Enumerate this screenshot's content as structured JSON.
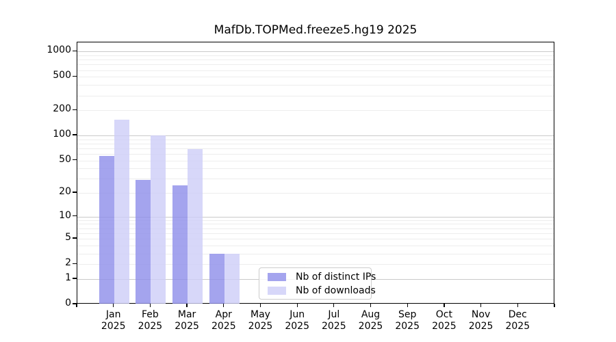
{
  "title": "MafDb.TOPMed.freeze5.hg19 2025",
  "chart_data": {
    "type": "bar",
    "title": "MafDb.TOPMed.freeze5.hg19 2025",
    "categories": [
      "Jan",
      "Feb",
      "Mar",
      "Apr",
      "May",
      "Jun",
      "Jul",
      "Aug",
      "Sep",
      "Oct",
      "Nov",
      "Dec"
    ],
    "year_label": "2025",
    "series": [
      {
        "name": "Nb of distinct IPs",
        "color": "rgba(141,141,234,0.8)",
        "values": [
          57,
          29,
          25,
          3,
          0,
          0,
          0,
          0,
          0,
          0,
          0,
          0
        ]
      },
      {
        "name": "Nb of downloads",
        "color": "rgba(205,205,247,0.8)",
        "values": [
          155,
          100,
          68,
          3,
          0,
          0,
          0,
          0,
          0,
          0,
          0,
          0
        ]
      }
    ],
    "xlabel": "",
    "ylabel": "",
    "y_axis": {
      "scale": "log1p",
      "ticks": [
        0,
        1,
        2,
        5,
        10,
        20,
        50,
        100,
        200,
        500,
        1000
      ],
      "range": [
        0,
        1000
      ]
    },
    "grid": {
      "on": true,
      "major_values": [
        1,
        10,
        100,
        1000
      ],
      "minor_multiples": [
        2,
        3,
        4,
        5,
        6,
        7,
        8,
        9
      ],
      "major_color": "#c9c9c9",
      "minor_color": "#ededed"
    },
    "legend": {
      "position": "lower center",
      "entries": [
        "Nb of distinct IPs",
        "Nb of downloads"
      ]
    }
  },
  "colors": {
    "background": "#ffffff",
    "frame": "#000000",
    "distinct_ips_bar": "rgba(141,141,234,0.8)",
    "downloads_bar": "rgba(205,205,247,0.8)",
    "legend_border": "#cccccc"
  }
}
